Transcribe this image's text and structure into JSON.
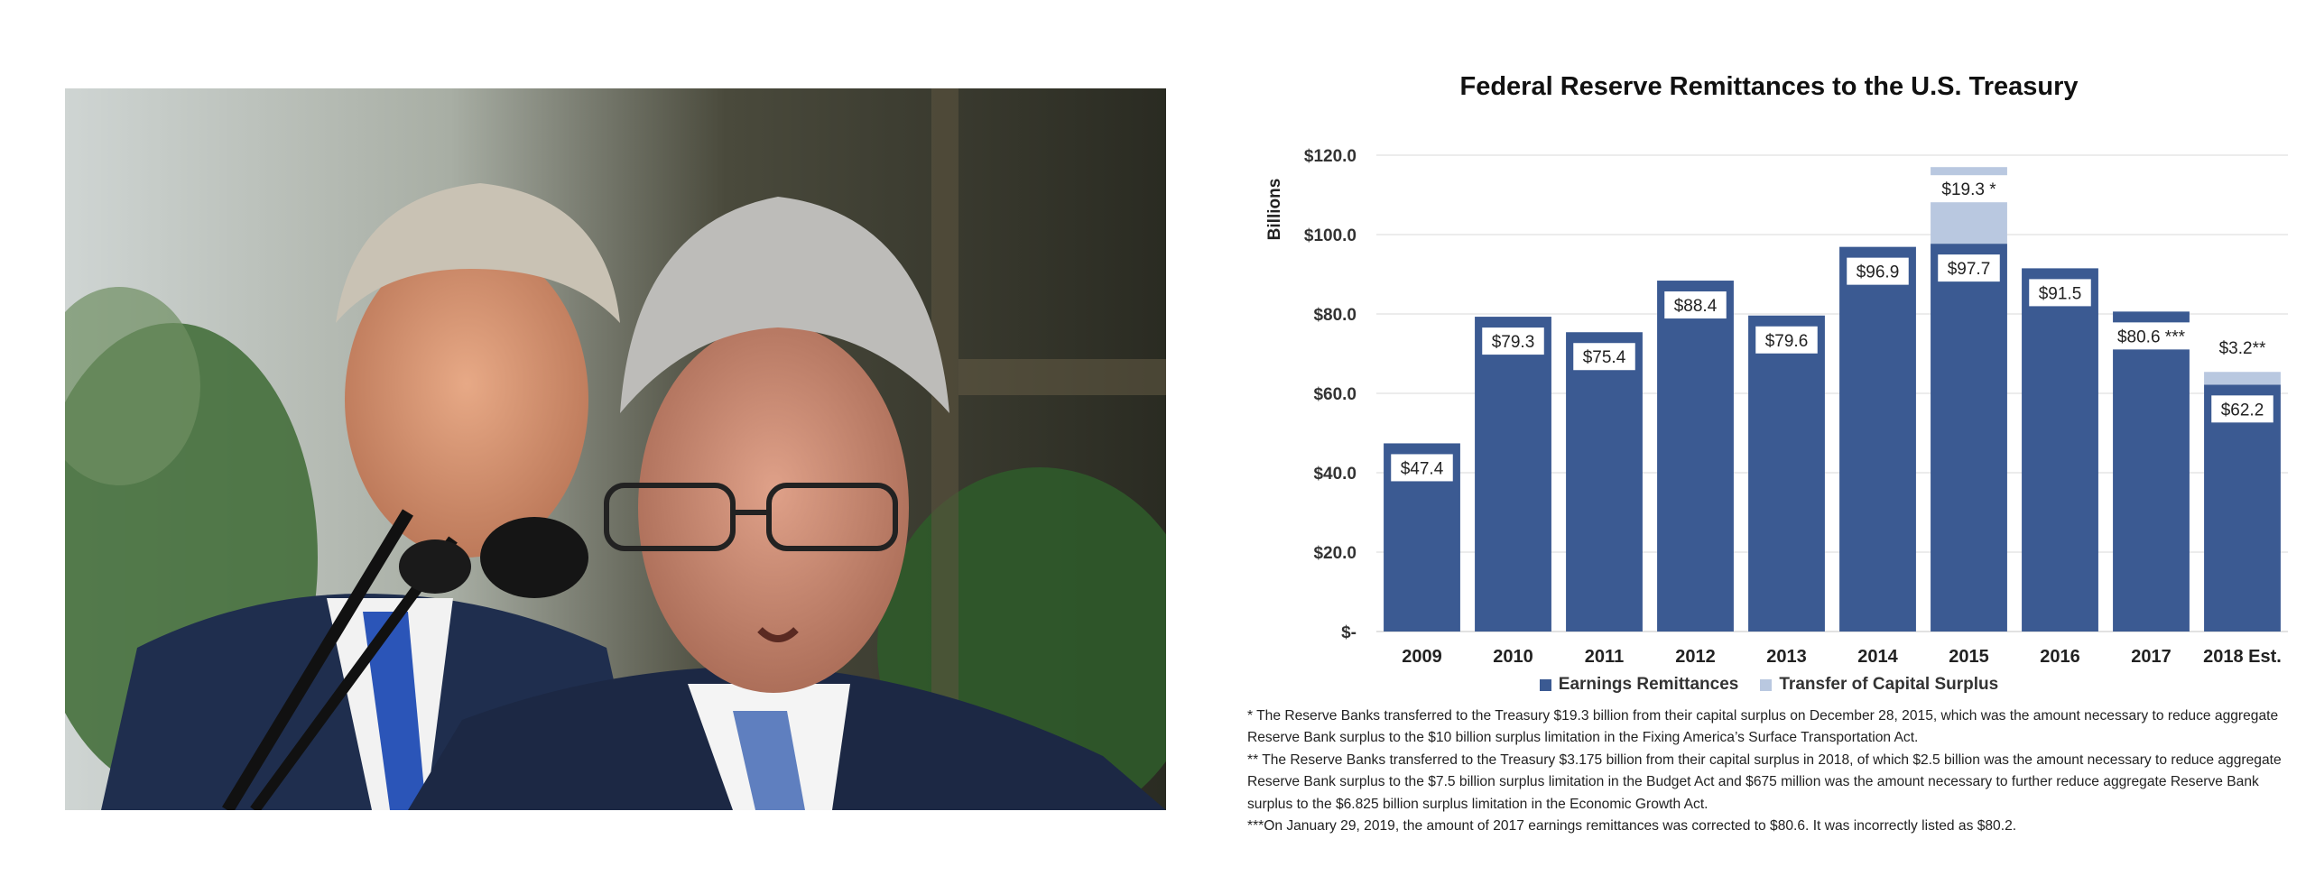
{
  "photo": {
    "description_icon": "photo-icon"
  },
  "chart_data": {
    "type": "bar",
    "title": "Federal Reserve Remittances to the U.S. Treasury",
    "ylabel": "Billions",
    "ylim": [
      0,
      120
    ],
    "yticks": [
      "$-",
      "$20.0",
      "$40.0",
      "$60.0",
      "$80.0",
      "$100.0",
      "$120.0"
    ],
    "categories": [
      "2009",
      "2010",
      "2011",
      "2012",
      "2013",
      "2014",
      "2015",
      "2016",
      "2017",
      "2018 Est."
    ],
    "series": [
      {
        "name": "Earnings Remittances",
        "color": "#3b5a92",
        "values": [
          47.4,
          79.3,
          75.4,
          88.4,
          79.6,
          96.9,
          97.7,
          91.5,
          80.6,
          62.2
        ],
        "labels": [
          "$47.4",
          "$79.3",
          "$75.4",
          "$88.4",
          "$79.6",
          "$96.9",
          "$97.7",
          "$91.5",
          "$80.6 ***",
          "$62.2"
        ]
      },
      {
        "name": "Transfer of Capital Surplus",
        "color": "#b9c8e0",
        "values": [
          0,
          0,
          0,
          0,
          0,
          0,
          19.3,
          0,
          0,
          3.2
        ],
        "labels": [
          "",
          "",
          "",
          "",
          "",
          "",
          "$19.3 *",
          "",
          "",
          "$3.2**"
        ]
      }
    ],
    "grid": true,
    "legend": "bottom"
  },
  "footnotes": [
    "* The Reserve Banks transferred to the Treasury $19.3 billion from their capital surplus on December 28, 2015, which was the amount necessary to reduce aggregate Reserve Bank surplus to the $10 billion surplus limitation in the Fixing America’s Surface Transportation Act.",
    "** The Reserve Banks transferred to the Treasury $3.175 billion from their capital surplus in 2018, of which $2.5 billion was the amount necessary to reduce aggregate Reserve Bank surplus to the $7.5 billion surplus limitation in the Budget Act and $675 million was the amount necessary to further reduce aggregate Reserve Bank surplus to the $6.825 billion surplus limitation in the Economic Growth Act.",
    "***On January 29, 2019, the amount of 2017 earnings remittances was corrected to $80.6. It was incorrectly listed as $80.2."
  ]
}
